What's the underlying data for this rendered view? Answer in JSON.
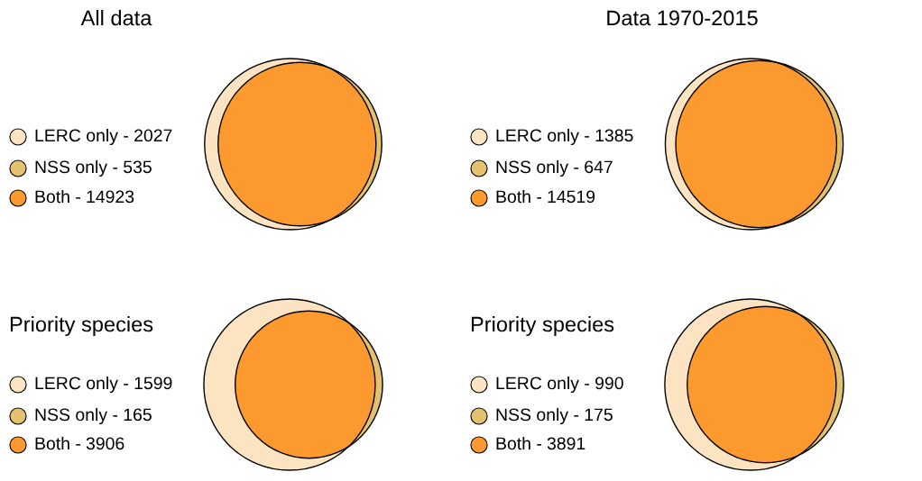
{
  "chart_data": [
    {
      "type": "other",
      "title": "All data",
      "categories": [
        "LERC only -",
        "NSS only -",
        "Both -"
      ],
      "values": [
        2027,
        535,
        14923
      ],
      "data_labels": true,
      "colors": [
        "#fce4c2",
        "#e3c16e",
        "#fd9a2f"
      ]
    },
    {
      "type": "other",
      "title": "Data 1970-2015",
      "categories": [
        "LERC only -",
        "NSS only -",
        "Both -"
      ],
      "values": [
        1385,
        647,
        14519
      ],
      "data_labels": true,
      "colors": [
        "#fce4c2",
        "#e3c16e",
        "#fd9a2f"
      ]
    },
    {
      "type": "other",
      "title": "Priority species",
      "categories": [
        "LERC only -",
        "NSS only -",
        "Both -"
      ],
      "values": [
        1599,
        165,
        3906
      ],
      "data_labels": true,
      "colors": [
        "#fce4c2",
        "#e3c16e",
        "#fd9a2f"
      ]
    },
    {
      "type": "other",
      "title": "Priority species",
      "categories": [
        "LERC only -",
        "NSS only -",
        "Both -"
      ],
      "values": [
        990,
        175,
        3891
      ],
      "data_labels": true,
      "colors": [
        "#fce4c2",
        "#e3c16e",
        "#fd9a2f"
      ]
    }
  ]
}
